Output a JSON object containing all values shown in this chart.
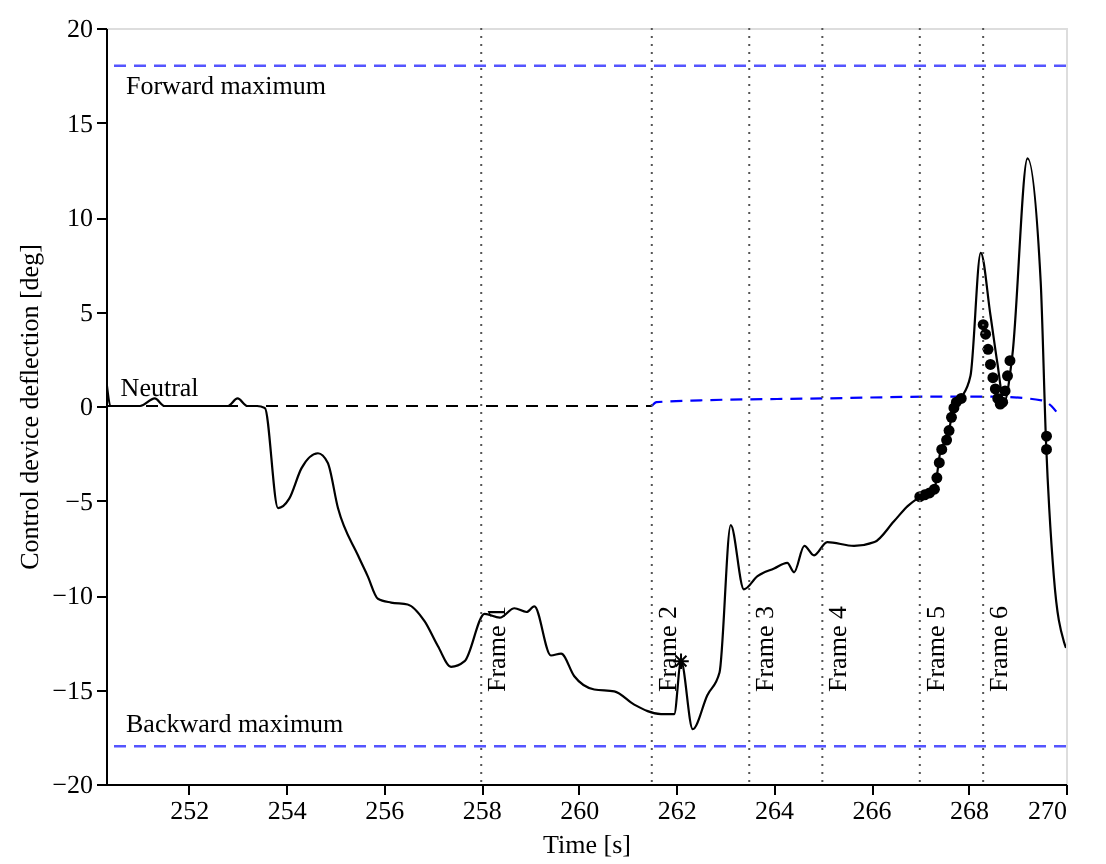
{
  "chart_data": {
    "type": "line",
    "xlabel": "Time [s]",
    "ylabel": "Control device deflection [deg]",
    "xlim": [
      250.3,
      270
    ],
    "ylim": [
      -20,
      20
    ],
    "xticks": [
      252,
      254,
      256,
      258,
      260,
      262,
      264,
      266,
      268,
      270
    ],
    "yticks": [
      -20,
      -15,
      -10,
      -5,
      0,
      5,
      10,
      15,
      20
    ],
    "grid": false,
    "series": [
      {
        "type": "line",
        "color": "#000000",
        "line_style": "solid",
        "marker": "none",
        "x": [
          250.3,
          250.4,
          251.0,
          251.3,
          251.5,
          252.8,
          253.0,
          253.2,
          253.4,
          253.56,
          253.83,
          254.06,
          254.31,
          254.65,
          254.85,
          255.06,
          255.47,
          255.67,
          255.88,
          256.15,
          256.49,
          256.84,
          257.11,
          257.38,
          257.66,
          258.07,
          258.38,
          258.68,
          258.93,
          259.09,
          259.43,
          259.64,
          259.91,
          260.32,
          260.73,
          261.14,
          261.69,
          261.96,
          262.1,
          262.34,
          262.64,
          262.89,
          263.12,
          263.39,
          263.67,
          264.01,
          264.28,
          264.42,
          264.63,
          264.83,
          265.1,
          265.65,
          266.07,
          266.47,
          266.75,
          266.95,
          267.29,
          267.43,
          267.56,
          267.7,
          267.84,
          268.04,
          268.25,
          268.45,
          268.59,
          268.73,
          268.9,
          269.21,
          269.48,
          269.59,
          269.75,
          269.96,
          270
        ],
        "values": [
          1.5,
          0,
          0,
          0.4,
          0,
          0,
          0.4,
          0,
          0,
          -0.1,
          -5.4,
          -4.9,
          -3.3,
          -2.5,
          -3.0,
          -5.4,
          -7.9,
          -9.0,
          -10.2,
          -10.4,
          -10.5,
          -11.4,
          -12.7,
          -13.8,
          -13.5,
          -11.0,
          -11.2,
          -10.7,
          -10.9,
          -10.6,
          -13.2,
          -13.1,
          -14.3,
          -15.0,
          -15.1,
          -15.8,
          -16.3,
          -16.3,
          -13.5,
          -17.1,
          -15.3,
          -14.1,
          -6.3,
          -9.7,
          -9.0,
          -8.6,
          -8.3,
          -8.8,
          -7.4,
          -7.9,
          -7.2,
          -7.4,
          -7.2,
          -6.1,
          -5.3,
          -4.9,
          -4.5,
          -2.3,
          -1.7,
          -0.1,
          0.4,
          1.6,
          8.1,
          4.8,
          2.3,
          0.2,
          2.7,
          13.1,
          6.6,
          -1.9,
          -9.0,
          -12.5,
          -12.8
        ]
      },
      {
        "type": "line",
        "color": "#000000",
        "line_style": "dashed",
        "marker": "none",
        "x": [
          250.3,
          261.5
        ],
        "values": [
          0,
          0
        ]
      },
      {
        "type": "line",
        "color": "#0000ff",
        "line_style": "dashed",
        "marker": "none",
        "x": [
          261.5,
          261.6,
          262.5,
          265,
          267.5,
          268.5,
          269.5,
          269.7,
          269.8
        ],
        "values": [
          0,
          0.2,
          0.3,
          0.4,
          0.5,
          0.5,
          0.3,
          0,
          -0.3
        ]
      },
      {
        "type": "scatter",
        "color": "#000000",
        "marker": "circle",
        "x": [
          267.0,
          267.1,
          267.2,
          267.3,
          267.35,
          267.4,
          267.45,
          267.55,
          267.6,
          267.65,
          267.7,
          267.75,
          267.85,
          268.3,
          268.35,
          268.4,
          268.45,
          268.5,
          268.55,
          268.6,
          268.65,
          268.7,
          268.75,
          268.8,
          268.85,
          269.6,
          269.6
        ],
        "values": [
          -4.8,
          -4.7,
          -4.6,
          -4.4,
          -3.8,
          -3,
          -2.3,
          -1.8,
          -1.3,
          -0.6,
          -0.1,
          0.2,
          0.4,
          4.3,
          3.8,
          3,
          2.2,
          1.5,
          0.9,
          0.4,
          0.1,
          0.2,
          0.8,
          1.6,
          2.4,
          -1.6,
          -2.3
        ]
      },
      {
        "type": "scatter",
        "color": "#000000",
        "marker": "cross",
        "x": [
          262.1
        ],
        "values": [
          -13.5
        ]
      }
    ],
    "ref_lines": [
      {
        "axis": "y",
        "value": 18,
        "label": "Forward maximum",
        "color": "#5555ff",
        "line_style": "dashed"
      },
      {
        "axis": "y",
        "value": -18,
        "label": "Backward maximum",
        "color": "#5555ff",
        "line_style": "dashed"
      },
      {
        "axis": "x",
        "value": 258,
        "label": "Frame 1",
        "color": "#555555",
        "line_style": "dotted"
      },
      {
        "axis": "x",
        "value": 261.5,
        "label": "Frame 2",
        "color": "#555555",
        "line_style": "dotted"
      },
      {
        "axis": "x",
        "value": 263.5,
        "label": "Frame 3",
        "color": "#555555",
        "line_style": "dotted"
      },
      {
        "axis": "x",
        "value": 265,
        "label": "Frame 4",
        "color": "#555555",
        "line_style": "dotted"
      },
      {
        "axis": "x",
        "value": 267,
        "label": "Frame 5",
        "color": "#555555",
        "line_style": "dotted"
      },
      {
        "axis": "x",
        "value": 268.3,
        "label": "Frame 6",
        "color": "#555555",
        "line_style": "dotted"
      }
    ],
    "annotations": [
      {
        "text": "Neutral",
        "x": 250.6,
        "y": 0
      }
    ]
  }
}
